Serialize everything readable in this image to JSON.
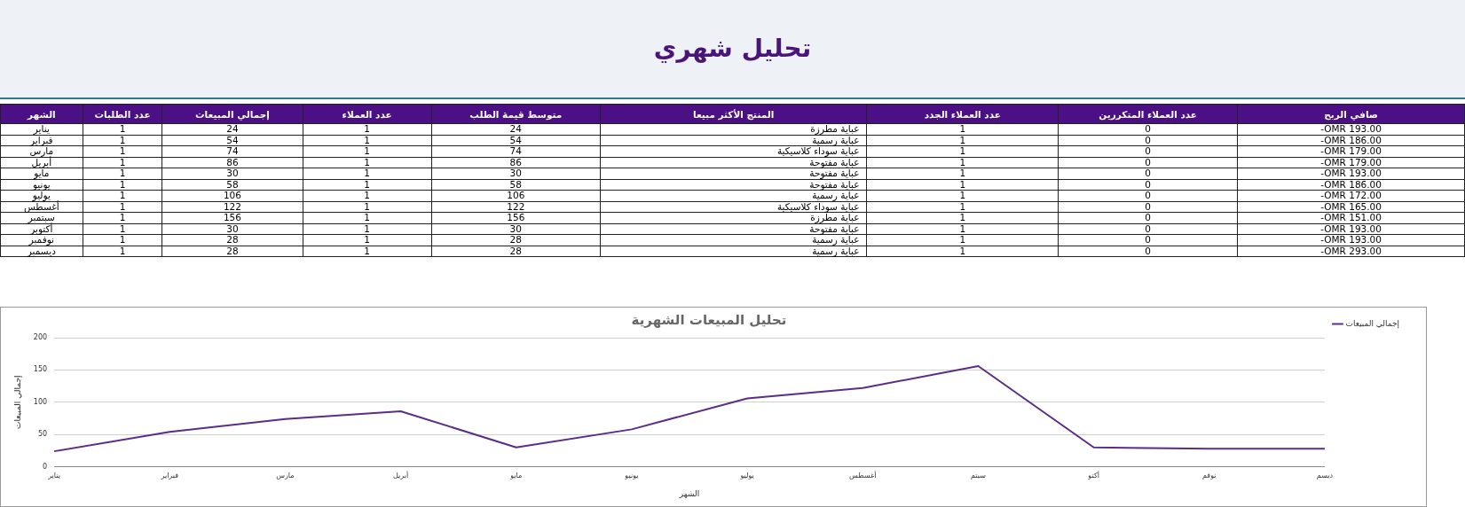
{
  "chart_data": [
    {
      "type": "other",
      "title": "تحليل شهري",
      "xlabel": "الشهر",
      "data_labels": true,
      "categories": [
        "يناير",
        "فبراير",
        "مارس",
        "أبريل",
        "مايو",
        "يونيو",
        "يوليو",
        "أغسطس",
        "سبتمبر",
        "أكتوبر",
        "نوفمبر",
        "ديسمبر"
      ],
      "series": [
        {
          "name": "عدد الطلبات",
          "values": [
            1,
            1,
            1,
            1,
            1,
            1,
            1,
            1,
            1,
            1,
            1,
            1
          ]
        },
        {
          "name": "إجمالي المبيعات",
          "values": [
            24,
            54,
            74,
            86,
            30,
            58,
            106,
            122,
            156,
            30,
            28,
            28
          ]
        },
        {
          "name": "عدد العملاء",
          "values": [
            1,
            1,
            1,
            1,
            1,
            1,
            1,
            1,
            1,
            1,
            1,
            1
          ]
        },
        {
          "name": "متوسط قيمة الطلب",
          "values": [
            24,
            54,
            74,
            86,
            30,
            58,
            106,
            122,
            156,
            30,
            28,
            28
          ]
        },
        {
          "name": "المنتج الأكثر مبيعا",
          "values": [
            null,
            null,
            null,
            null,
            null,
            null,
            null,
            null,
            null,
            null,
            null,
            null
          ],
          "value_labels": [
            "عباية مطرزة",
            "عباية رسمية",
            "عباية سوداء كلاسيكية",
            "عباية مفتوحة",
            "عباية مفتوحة",
            "عباية مفتوحة",
            "عباية رسمية",
            "عباية سوداء كلاسيكية",
            "عباية مطرزة",
            "عباية مفتوحة",
            "عباية رسمية",
            "عباية رسمية"
          ]
        },
        {
          "name": "عدد العملاء الجدد",
          "values": [
            1,
            1,
            1,
            1,
            1,
            1,
            1,
            1,
            1,
            1,
            1,
            1
          ]
        },
        {
          "name": "عدد العملاء المتكررين",
          "values": [
            0,
            0,
            0,
            0,
            0,
            0,
            0,
            0,
            0,
            0,
            0,
            0
          ]
        },
        {
          "name": "صافي الربح",
          "values": [
            null,
            null,
            null,
            null,
            null,
            null,
            null,
            null,
            null,
            null,
            null,
            null
          ],
          "value_labels": [
            "-OMR 193.00",
            "-OMR 186.00",
            "-OMR 179.00",
            "-OMR 179.00",
            "-OMR 193.00",
            "-OMR 186.00",
            "-OMR 172.00",
            "-OMR 165.00",
            "-OMR 151.00",
            "-OMR 193.00",
            "-OMR 193.00",
            "-OMR 293.00"
          ]
        }
      ]
    },
    {
      "type": "line",
      "title": "تحليل المبيعات الشهرية",
      "xlabel": "الشهر",
      "ylabel": "إجمالي المبيعات",
      "categories": [
        "يناير",
        "فبراير",
        "مارس",
        "أبريل",
        "مايو",
        "يونيو",
        "يوليو",
        "أغسطس",
        "سبتم",
        "أكتو",
        "نوفم",
        "ديسم"
      ],
      "series": [
        {
          "name": "إجمالي المبيعات",
          "color": "#5b2d86",
          "values": [
            24,
            54,
            74,
            86,
            30,
            58,
            106,
            122,
            156,
            30,
            28,
            28
          ]
        }
      ],
      "ylim": [
        0,
        200
      ],
      "yticks": [
        0,
        50,
        100,
        150,
        200
      ],
      "grid": "y",
      "legend": "top right",
      "marker": "none"
    }
  ]
}
